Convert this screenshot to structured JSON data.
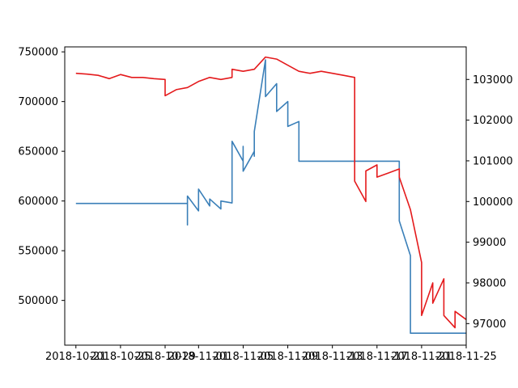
{
  "chart_data": {
    "type": "line",
    "title": "",
    "xlabel": "",
    "ylabel_left": "",
    "ylabel_right": "",
    "grid": false,
    "legend": "none",
    "x_ticks": [
      "2018-10-21",
      "2018-10-25",
      "2018-10-29",
      "2018-11-01",
      "2018-11-05",
      "2018-11-09",
      "2018-11-13",
      "2018-11-17",
      "2018-11-21",
      "2018-11-25"
    ],
    "xlim": [
      "2018-10-20",
      "2018-11-25"
    ],
    "y_left": {
      "ticks": [
        500000,
        550000,
        600000,
        650000,
        700000,
        750000
      ],
      "ylim": [
        455000,
        755000
      ]
    },
    "y_right": {
      "ticks": [
        97000,
        98000,
        99000,
        100000,
        101000,
        102000,
        103000
      ],
      "ylim": [
        96470,
        103800
      ]
    },
    "series": [
      {
        "axis": "left",
        "color": "#3a7fb8",
        "points": [
          [
            "2018-10-21",
            597500
          ],
          [
            "2018-10-31",
            597500
          ],
          [
            "2018-10-31",
            576000
          ],
          [
            "2018-10-31",
            605000
          ],
          [
            "2018-11-01",
            590000
          ],
          [
            "2018-11-01",
            612000
          ],
          [
            "2018-11-02",
            595000
          ],
          [
            "2018-11-02",
            602000
          ],
          [
            "2018-11-03",
            592000
          ],
          [
            "2018-11-03",
            600000
          ],
          [
            "2018-11-04",
            598000
          ],
          [
            "2018-11-04",
            605000
          ],
          [
            "2018-11-04",
            660000
          ],
          [
            "2018-11-05",
            640000
          ],
          [
            "2018-11-05",
            655000
          ],
          [
            "2018-11-05",
            630000
          ],
          [
            "2018-11-06",
            650000
          ],
          [
            "2018-11-06",
            645000
          ],
          [
            "2018-11-06",
            670000
          ],
          [
            "2018-11-07",
            742000
          ],
          [
            "2018-11-07",
            705000
          ],
          [
            "2018-11-08",
            718000
          ],
          [
            "2018-11-08",
            690000
          ],
          [
            "2018-11-09",
            700000
          ],
          [
            "2018-11-09",
            675000
          ],
          [
            "2018-11-10",
            680000
          ],
          [
            "2018-11-10",
            640000
          ],
          [
            "2018-11-19",
            640000
          ],
          [
            "2018-11-19",
            620000
          ],
          [
            "2018-11-19",
            580000
          ],
          [
            "2018-11-20",
            545000
          ],
          [
            "2018-11-20",
            467000
          ],
          [
            "2018-11-25",
            467000
          ]
        ]
      },
      {
        "axis": "right",
        "color": "#e41a1c",
        "points": [
          [
            "2018-10-21",
            103150
          ],
          [
            "2018-10-22",
            103130
          ],
          [
            "2018-10-23",
            103100
          ],
          [
            "2018-10-24",
            103020
          ],
          [
            "2018-10-25",
            103120
          ],
          [
            "2018-10-26",
            103050
          ],
          [
            "2018-10-27",
            103050
          ],
          [
            "2018-10-28",
            103020
          ],
          [
            "2018-10-29",
            103000
          ],
          [
            "2018-10-29",
            102600
          ],
          [
            "2018-10-30",
            102750
          ],
          [
            "2018-10-31",
            102800
          ],
          [
            "2018-11-01",
            102950
          ],
          [
            "2018-11-02",
            103050
          ],
          [
            "2018-11-03",
            103000
          ],
          [
            "2018-11-04",
            103050
          ],
          [
            "2018-11-04",
            103250
          ],
          [
            "2018-11-05",
            103200
          ],
          [
            "2018-11-06",
            103250
          ],
          [
            "2018-11-07",
            103550
          ],
          [
            "2018-11-08",
            103500
          ],
          [
            "2018-11-09",
            103350
          ],
          [
            "2018-11-10",
            103200
          ],
          [
            "2018-11-11",
            103150
          ],
          [
            "2018-11-12",
            103200
          ],
          [
            "2018-11-13",
            103150
          ],
          [
            "2018-11-14",
            103100
          ],
          [
            "2018-11-15",
            103050
          ],
          [
            "2018-11-15",
            102300
          ],
          [
            "2018-11-15",
            100500
          ],
          [
            "2018-11-16",
            100000
          ],
          [
            "2018-11-16",
            100750
          ],
          [
            "2018-11-17",
            100900
          ],
          [
            "2018-11-17",
            100600
          ],
          [
            "2018-11-18",
            100700
          ],
          [
            "2018-11-19",
            100800
          ],
          [
            "2018-11-19",
            100600
          ],
          [
            "2018-11-20",
            99800
          ],
          [
            "2018-11-21",
            98500
          ],
          [
            "2018-11-21",
            97200
          ],
          [
            "2018-11-22",
            98000
          ],
          [
            "2018-11-22",
            97500
          ],
          [
            "2018-11-23",
            98100
          ],
          [
            "2018-11-23",
            97200
          ],
          [
            "2018-11-24",
            96900
          ],
          [
            "2018-11-24",
            97300
          ],
          [
            "2018-11-25",
            97100
          ]
        ]
      }
    ]
  }
}
